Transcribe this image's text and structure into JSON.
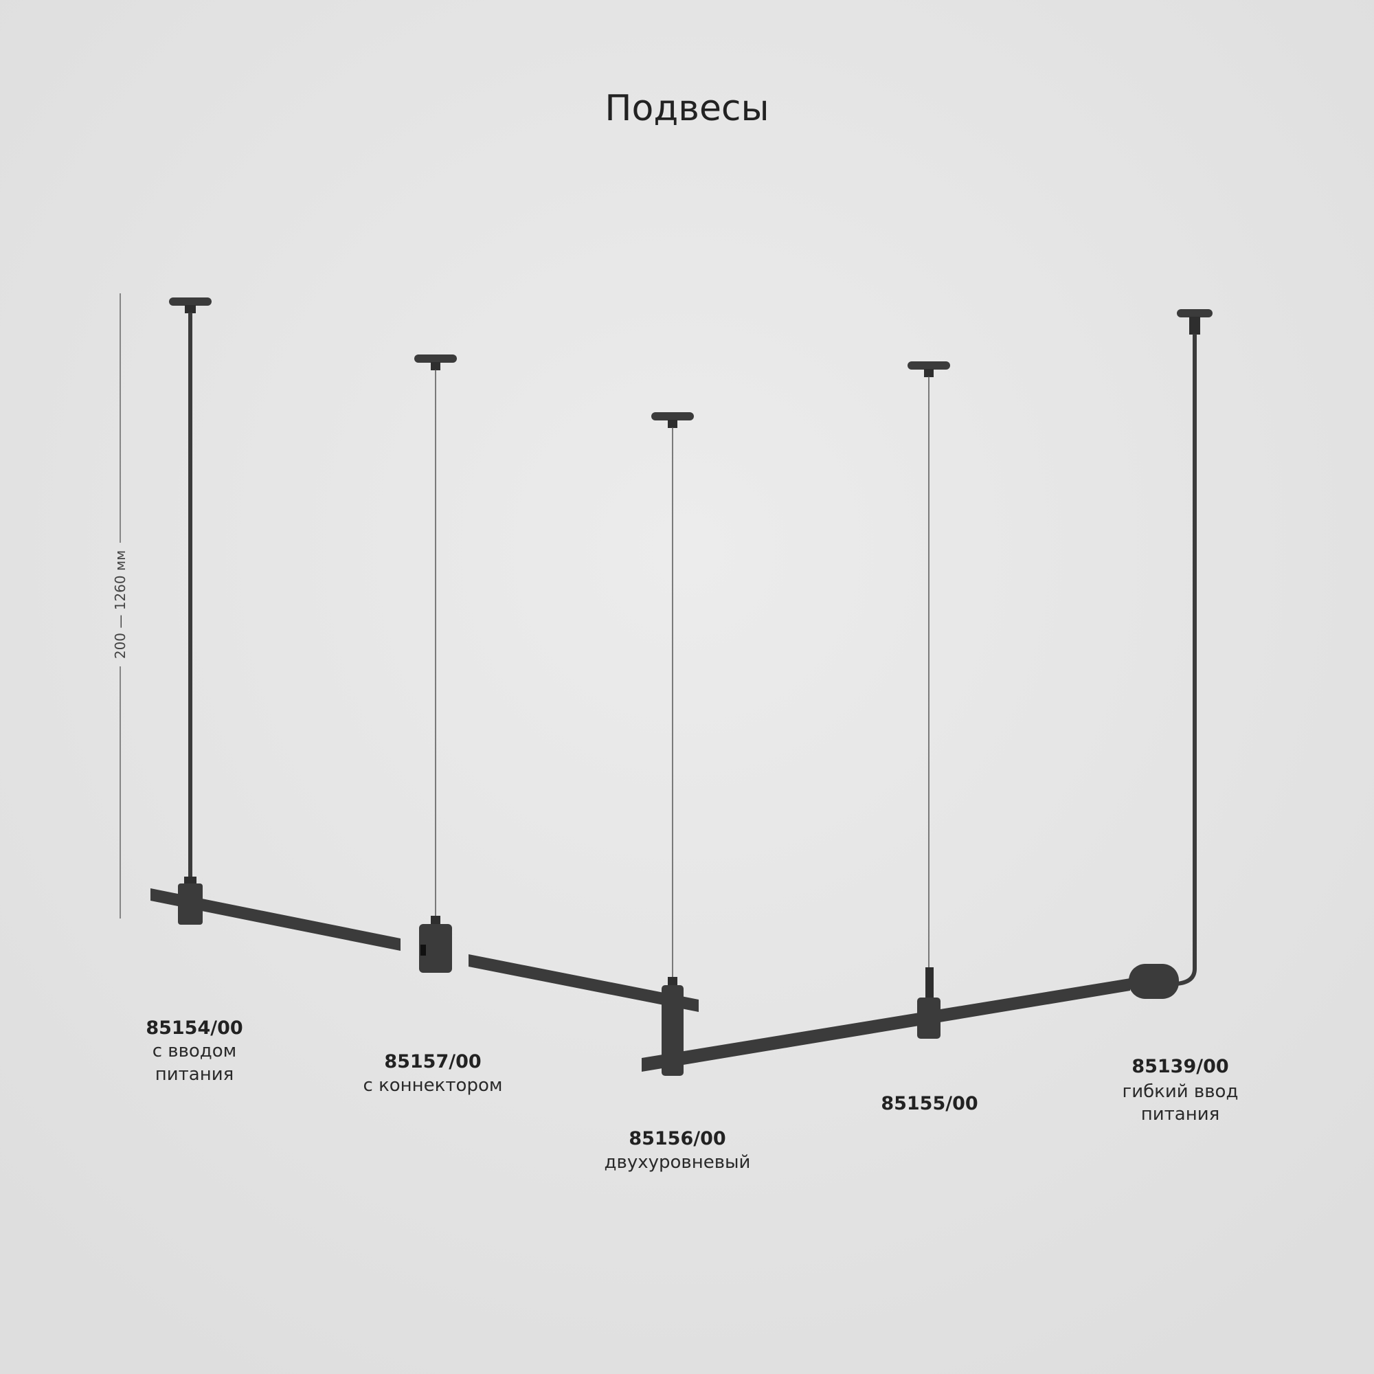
{
  "title": "Подвесы",
  "dimension": "200 — 1260 мм",
  "colors": {
    "background": "#e4e4e4",
    "fixture": "#3b3b3b",
    "text": "#222222"
  },
  "products": [
    {
      "code": "85154/00",
      "lines": [
        "с вводом",
        "питания"
      ]
    },
    {
      "code": "85157/00",
      "lines": [
        "с коннектором"
      ]
    },
    {
      "code": "85156/00",
      "lines": [
        "двухуровневый"
      ]
    },
    {
      "code": "85155/00",
      "lines": []
    },
    {
      "code": "85139/00",
      "lines": [
        "гибкий ввод",
        "питания"
      ]
    }
  ]
}
